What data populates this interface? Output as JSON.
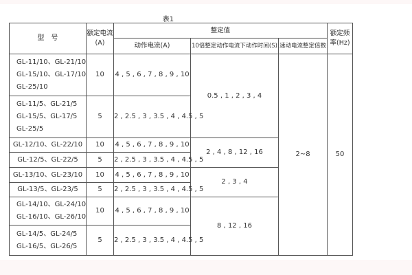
{
  "caption": "表1",
  "headers": {
    "model": "型　号",
    "rated_current": "额定电流(A)",
    "setting": "整定值",
    "action_current": "动作电流(A)",
    "action_time": "10倍整定动作电流下动作时间(S)",
    "instant_multiple": "速动电流整定倍数",
    "rated_freq": "额定频率(Hz)"
  },
  "rows": [
    {
      "models": [
        "GL-11/10、GL-21/10",
        "GL-15/10、GL-17/10",
        "GL-25/10"
      ],
      "rated": "10",
      "current": "4 , 5 , 6 , 7 , 8 , 9 , 10"
    },
    {
      "models": [
        "GL-11/5、GL-21/5",
        "GL-15/5、GL-17/5",
        "GL-25/5"
      ],
      "rated": "5",
      "current": "2 , 2.5 , 3 , 3.5 , 4 , 4.5 , 5"
    },
    {
      "models": [
        "GL-12/10、GL-22/10"
      ],
      "rated": "10",
      "current": "4 , 5 , 6 , 7 , 8 , 9 , 10"
    },
    {
      "models": [
        "GL-12/5、GL-22/5"
      ],
      "rated": "5",
      "current": "2 , 2.5 , 3 , 3.5 , 4 , 4.5 , 5"
    },
    {
      "models": [
        "GL-13/10、GL-23/10"
      ],
      "rated": "10",
      "current": "4 , 5 , 6 , 7 , 8 , 9 , 10"
    },
    {
      "models": [
        "GL-13/5、GL-23/5"
      ],
      "rated": "5",
      "current": "2 , 2.5 , 3 , 3.5 , 4 , 4.5 , 5"
    },
    {
      "models": [
        "GL-14/10、GL-24/10",
        "GL-16/10、GL-26/10"
      ],
      "rated": "10",
      "current": "4 , 5 , 6 , 7 , 8 , 9 , 10"
    },
    {
      "models": [
        "GL-14/5、GL-24/5",
        "GL-16/5、GL-26/5"
      ],
      "rated": "5",
      "current": "2 , 2.5 , 3 , 3.5 , 4 , 4.5 , 5"
    }
  ],
  "times": [
    "0.5 , 1 , 2 , 3 , 4",
    "2 , 4 , 8 , 12 , 16",
    "2 , 3 , 4",
    "8 , 12 , 16"
  ],
  "instant_multiple": "2~8",
  "rated_freq": "50"
}
